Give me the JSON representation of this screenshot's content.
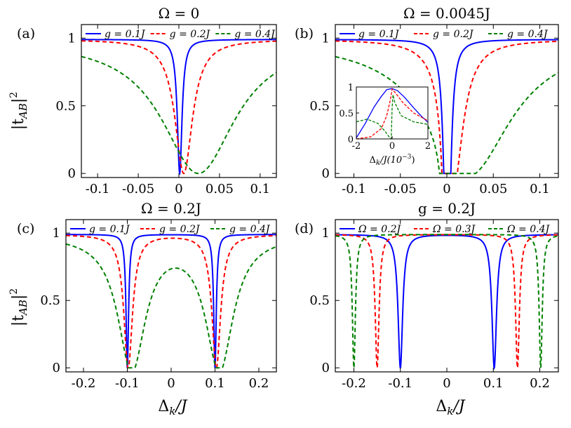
{
  "figure": {
    "shared_ylabel": "|t_AB|^2",
    "ylabel_base": "|t",
    "ylabel_sub": "AB",
    "ylabel_tail": "|",
    "ylabel_sup": "2",
    "xlabel_bottom": "Δk/J",
    "xlabel_base": "Δ",
    "xlabel_sub": "k",
    "xlabel_tail": "/J",
    "panel_tags": [
      "(a)",
      "(b)",
      "(c)",
      "(d)"
    ],
    "titles": [
      "Ω = 0",
      "Ω = 0.0045J",
      "Ω = 0.2J",
      "g = 0.2J"
    ]
  },
  "colors": {
    "blue": "#0000ff",
    "red": "#ff0000",
    "green": "#008000"
  },
  "chart_data": [
    {
      "panel": "a",
      "type": "line",
      "title": "Ω = 0",
      "xlim": [
        -0.12,
        0.12
      ],
      "ylim": [
        -0.03,
        1.1
      ],
      "xticks": [
        -0.1,
        -0.05,
        0,
        0.05,
        0.1
      ],
      "xtick_labels": [
        "-0.1",
        "-0.05",
        "0",
        "0.05",
        "0.1"
      ],
      "yticks": [
        0,
        0.5,
        1
      ],
      "ytick_labels": [
        "0",
        "0.5",
        "1"
      ],
      "xlabel": "",
      "ylabel": "|t_AB|^2",
      "legend": "top",
      "series": [
        {
          "name": "g = 0.1J",
          "color": "blue",
          "style": "solid",
          "dips": [
            {
              "center": 0.001,
              "width": 0.0035,
              "depth": 1.0
            }
          ],
          "baseline": 0.99
        },
        {
          "name": "g = 0.2J",
          "color": "red",
          "style": "dashed",
          "dips": [
            {
              "center": 0.006,
              "width": 0.013,
              "depth": 1.0
            }
          ],
          "baseline": 0.99
        },
        {
          "name": "g = 0.4J",
          "color": "green",
          "style": "dashed",
          "dips": [
            {
              "center": 0.024,
              "width": 0.055,
              "depth": 1.0
            }
          ],
          "baseline": 0.99
        }
      ]
    },
    {
      "panel": "b",
      "type": "line",
      "title": "Ω = 0.0045J",
      "xlim": [
        -0.12,
        0.12
      ],
      "ylim": [
        -0.03,
        1.1
      ],
      "xticks": [
        -0.1,
        -0.05,
        0,
        0.05,
        0.1
      ],
      "xtick_labels": [
        "-0.1",
        "-0.05",
        "0",
        "0.05",
        "0.1"
      ],
      "yticks": [
        0,
        0.5,
        1
      ],
      "ytick_labels": [
        "0",
        "0.5",
        "1"
      ],
      "xlabel": "",
      "ylabel": "",
      "legend": "top",
      "series": [
        {
          "name": "g = 0.1J",
          "color": "blue",
          "style": "solid",
          "dips": [
            {
              "center": -0.001,
              "width": 0.0035,
              "depth": 1.0
            },
            {
              "center": 0.002,
              "width": 0.0035,
              "depth": 1.0
            }
          ],
          "baseline": 0.99
        },
        {
          "name": "g = 0.2J",
          "color": "red",
          "style": "dashed",
          "dips": [
            {
              "center": -0.001,
              "width": 0.004,
              "depth": 1.0
            },
            {
              "center": 0.007,
              "width": 0.013,
              "depth": 1.0
            }
          ],
          "baseline": 0.99
        },
        {
          "name": "g = 0.4J",
          "color": "green",
          "style": "dashed",
          "dips": [
            {
              "center": -0.001,
              "width": 0.004,
              "depth": 1.0
            },
            {
              "center": 0.024,
              "width": 0.055,
              "depth": 1.0
            }
          ],
          "baseline": 0.99
        }
      ],
      "inset": {
        "xlim": [
          -2,
          2
        ],
        "ylim": [
          0,
          1.0
        ],
        "xticks": [
          -2,
          0,
          2
        ],
        "xtick_labels": [
          "-2",
          "0",
          "2"
        ],
        "yticks": [
          0,
          0.5,
          1
        ],
        "ytick_labels": [
          "0",
          "0.5",
          "1"
        ],
        "xlabel": "Δk/J(10^-3)",
        "xlabel_base": "Δ",
        "xlabel_sub": "k",
        "xlabel_tail": "/J(10",
        "xlabel_sup": "−3",
        "xlabel_end": ")",
        "series": [
          {
            "name": "g = 0.1J",
            "color": "blue",
            "style": "solid",
            "x": [
              -2,
              -1.5,
              -1,
              -0.6,
              -0.3,
              0,
              0.3,
              0.7,
              1.2,
              1.6,
              2
            ],
            "y": [
              0.02,
              0.3,
              0.62,
              0.82,
              0.95,
              0.97,
              0.93,
              0.8,
              0.6,
              0.45,
              0.32
            ]
          },
          {
            "name": "g = 0.2J",
            "color": "red",
            "style": "dashed",
            "x": [
              -2,
              -1.2,
              -0.6,
              -0.3,
              -0.1,
              0,
              0.2,
              0.6,
              1.2,
              2
            ],
            "y": [
              0.0,
              0.04,
              0.2,
              0.45,
              0.75,
              0.96,
              0.88,
              0.7,
              0.5,
              0.35
            ]
          },
          {
            "name": "g = 0.4J",
            "color": "green",
            "style": "dashed",
            "x": [
              -2,
              -1.4,
              -0.8,
              -0.4,
              -0.15,
              -0.05,
              0,
              0.05,
              0.15,
              0.5,
              1.2,
              2
            ],
            "y": [
              0.33,
              0.38,
              0.3,
              0.15,
              0.03,
              0.0,
              0.6,
              0.85,
              0.7,
              0.45,
              0.33,
              0.28
            ]
          }
        ]
      }
    },
    {
      "panel": "c",
      "type": "line",
      "title": "Ω = 0.2J",
      "xlim": [
        -0.24,
        0.24
      ],
      "ylim": [
        -0.03,
        1.1
      ],
      "xticks": [
        -0.2,
        -0.1,
        0,
        0.1,
        0.2
      ],
      "xtick_labels": [
        "-0.2",
        "-0.1",
        "0",
        "0.1",
        "0.2"
      ],
      "yticks": [
        0,
        0.5,
        1
      ],
      "ytick_labels": [
        "0",
        "0.5",
        "1"
      ],
      "xlabel": "Δk/J",
      "ylabel": "|t_AB|^2",
      "legend": "top",
      "series": [
        {
          "name": "g = 0.1J",
          "color": "blue",
          "style": "solid",
          "dips": [
            {
              "center": -0.1,
              "width": 0.0035,
              "depth": 1.0
            },
            {
              "center": 0.1,
              "width": 0.0035,
              "depth": 1.0
            }
          ],
          "baseline": 0.99
        },
        {
          "name": "g = 0.2J",
          "color": "red",
          "style": "dashed",
          "dips": [
            {
              "center": -0.098,
              "width": 0.012,
              "depth": 1.0
            },
            {
              "center": 0.103,
              "width": 0.012,
              "depth": 1.0
            }
          ],
          "baseline": 0.99
        },
        {
          "name": "g = 0.4J",
          "color": "green",
          "style": "dashed",
          "dips": [
            {
              "center": -0.09,
              "width": 0.038,
              "depth": 1.0
            },
            {
              "center": 0.11,
              "width": 0.038,
              "depth": 1.0
            }
          ],
          "baseline": 0.99
        }
      ]
    },
    {
      "panel": "d",
      "type": "line",
      "title": "g = 0.2J",
      "xlim": [
        -0.24,
        0.24
      ],
      "ylim": [
        -0.03,
        1.1
      ],
      "xticks": [
        -0.2,
        -0.1,
        0,
        0.1,
        0.2
      ],
      "xtick_labels": [
        "-0.2",
        "-0.1",
        "0",
        "0.1",
        "0.2"
      ],
      "yticks": [
        0,
        0.5,
        1
      ],
      "ytick_labels": [
        "0",
        "0.5",
        "1"
      ],
      "xlabel": "Δk/J",
      "ylabel": "",
      "legend": "top",
      "series": [
        {
          "name": "Ω = 0.2J",
          "color": "blue",
          "style": "solid",
          "dips": [
            {
              "center": -0.1,
              "width": 0.006,
              "depth": 1.0
            },
            {
              "center": 0.102,
              "width": 0.006,
              "depth": 1.0
            }
          ],
          "baseline": 0.99
        },
        {
          "name": "Ω = 0.3J",
          "color": "red",
          "style": "dashed",
          "dips": [
            {
              "center": -0.15,
              "width": 0.005,
              "depth": 1.0
            },
            {
              "center": 0.152,
              "width": 0.005,
              "depth": 1.0
            }
          ],
          "baseline": 0.99
        },
        {
          "name": "Ω = 0.4J",
          "color": "green",
          "style": "dashed",
          "dips": [
            {
              "center": -0.2,
              "width": 0.004,
              "depth": 1.0
            },
            {
              "center": 0.202,
              "width": 0.004,
              "depth": 1.0
            }
          ],
          "baseline": 0.99
        }
      ]
    }
  ]
}
